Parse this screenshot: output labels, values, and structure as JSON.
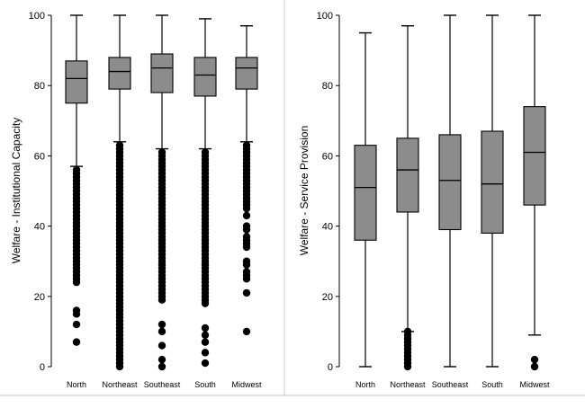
{
  "chart_data": [
    {
      "type": "boxplot",
      "ylabel": "Welfare - Institutional Capacity",
      "ylim": [
        0,
        100
      ],
      "yticks": [
        0,
        20,
        40,
        60,
        80,
        100
      ],
      "grid": false,
      "categories": [
        "North",
        "Northeast",
        "Southeast",
        "South",
        "Midwest"
      ],
      "boxes": [
        {
          "category": "North",
          "whisker_low": 57,
          "q1": 75,
          "median": 82,
          "q3": 87,
          "whisker_high": 100,
          "outliers": [
            56,
            55,
            54,
            53,
            52,
            51,
            50,
            49,
            48,
            47,
            46,
            45,
            44,
            43,
            42,
            41,
            40,
            39,
            38,
            37,
            36,
            35,
            34,
            33,
            32,
            31,
            30,
            29,
            28,
            27,
            26,
            25,
            24,
            16,
            15,
            12,
            7
          ]
        },
        {
          "category": "Northeast",
          "whisker_low": 64,
          "q1": 79,
          "median": 84,
          "q3": 88,
          "whisker_high": 100,
          "outliers": [
            63,
            62,
            61,
            60,
            59,
            58,
            57,
            56,
            55,
            54,
            53,
            52,
            51,
            50,
            49,
            48,
            47,
            46,
            45,
            44,
            43,
            42,
            41,
            40,
            39,
            38,
            37,
            36,
            35,
            34,
            33,
            32,
            31,
            30,
            29,
            28,
            27,
            26,
            25,
            24,
            23,
            22,
            21,
            20,
            19,
            18,
            17,
            16,
            15,
            14,
            13,
            12,
            11,
            10,
            9,
            8,
            7,
            6,
            5,
            4,
            3,
            2,
            1,
            0
          ]
        },
        {
          "category": "Southeast",
          "whisker_low": 62,
          "q1": 78,
          "median": 85,
          "q3": 89,
          "whisker_high": 100,
          "outliers": [
            61,
            60,
            59,
            58,
            57,
            56,
            55,
            54,
            53,
            52,
            51,
            50,
            49,
            48,
            47,
            46,
            45,
            44,
            43,
            42,
            41,
            40,
            39,
            38,
            37,
            36,
            35,
            34,
            33,
            32,
            31,
            30,
            29,
            28,
            27,
            26,
            25,
            24,
            23,
            22,
            21,
            20,
            19,
            12,
            10,
            6,
            2,
            0
          ]
        },
        {
          "category": "South",
          "whisker_low": 62,
          "q1": 77,
          "median": 83,
          "q3": 88,
          "whisker_high": 99,
          "outliers": [
            61,
            60,
            59,
            58,
            57,
            56,
            55,
            54,
            53,
            52,
            51,
            50,
            49,
            48,
            47,
            46,
            45,
            44,
            43,
            42,
            41,
            40,
            39,
            38,
            37,
            36,
            35,
            34,
            33,
            32,
            31,
            30,
            29,
            28,
            27,
            26,
            25,
            24,
            23,
            22,
            21,
            20,
            19,
            18,
            11,
            9,
            7,
            4,
            1
          ]
        },
        {
          "category": "Midwest",
          "whisker_low": 64,
          "q1": 79,
          "median": 85,
          "q3": 88,
          "whisker_high": 97,
          "outliers": [
            63,
            62,
            61,
            60,
            59,
            58,
            57,
            56,
            55,
            54,
            53,
            52,
            51,
            50,
            49,
            48,
            47,
            46,
            45,
            43,
            40,
            39,
            37,
            36,
            35,
            34,
            30,
            29,
            27,
            26,
            25,
            21,
            10
          ]
        }
      ]
    },
    {
      "type": "boxplot",
      "ylabel": "Welfare - Service Provision",
      "ylim": [
        0,
        100
      ],
      "yticks": [
        0,
        20,
        40,
        60,
        80,
        100
      ],
      "grid": false,
      "categories": [
        "North",
        "Northeast",
        "Southeast",
        "South",
        "Midwest"
      ],
      "boxes": [
        {
          "category": "North",
          "whisker_low": 0,
          "q1": 36,
          "median": 51,
          "q3": 63,
          "whisker_high": 95,
          "outliers": []
        },
        {
          "category": "Northeast",
          "whisker_low": 10,
          "q1": 44,
          "median": 56,
          "q3": 65,
          "whisker_high": 97,
          "outliers": [
            10,
            9,
            8,
            7,
            6,
            5,
            4,
            3,
            2,
            1,
            0
          ]
        },
        {
          "category": "Southeast",
          "whisker_low": 0,
          "q1": 39,
          "median": 53,
          "q3": 66,
          "whisker_high": 100,
          "outliers": []
        },
        {
          "category": "South",
          "whisker_low": 0,
          "q1": 38,
          "median": 52,
          "q3": 67,
          "whisker_high": 100,
          "outliers": []
        },
        {
          "category": "Midwest",
          "whisker_low": 9,
          "q1": 46,
          "median": 61,
          "q3": 74,
          "whisker_high": 100,
          "outliers": [
            2,
            0
          ]
        }
      ]
    }
  ]
}
